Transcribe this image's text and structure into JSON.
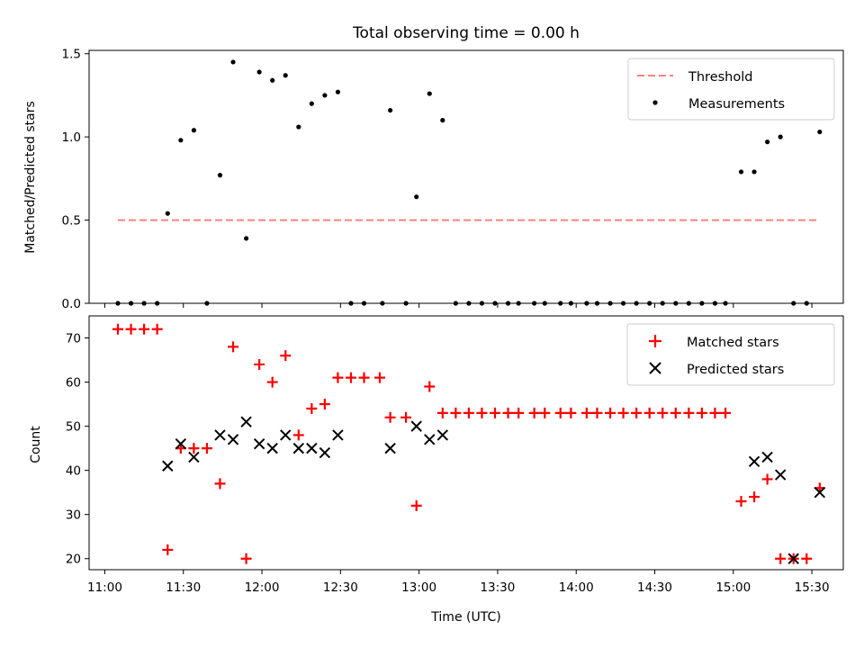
{
  "chart_data": [
    {
      "type": "scatter",
      "title": "Total observing time = 0.00 h",
      "xlabel": "",
      "ylabel": "Matched/Predicted stars",
      "ylim": [
        0,
        1.52
      ],
      "yticks": [
        "0.0",
        "0.5",
        "1.0",
        "1.5"
      ],
      "ytick_values": [
        0,
        0.5,
        1.0,
        1.5
      ],
      "xlim": [
        "10:54",
        "15:42"
      ],
      "grid": false,
      "legend_position": "top-right",
      "legend": [
        "Threshold",
        "Measurements"
      ],
      "threshold": {
        "name": "Threshold",
        "color": "#ff8080",
        "value": 0.5,
        "x_start": "11:05",
        "x_end": "15:32"
      },
      "series": [
        {
          "name": "Measurements",
          "color": "#000000",
          "marker": "dot",
          "x": [
            "11:05",
            "11:10",
            "11:15",
            "11:20",
            "11:24",
            "11:29",
            "11:34",
            "11:39",
            "11:44",
            "11:49",
            "11:54",
            "11:59",
            "12:04",
            "12:09",
            "12:14",
            "12:19",
            "12:24",
            "12:29",
            "12:34",
            "12:39",
            "12:46",
            "12:49",
            "12:55",
            "12:59",
            "13:04",
            "13:09",
            "13:14",
            "13:19",
            "13:24",
            "13:29",
            "13:34",
            "13:38",
            "13:44",
            "13:48",
            "13:54",
            "13:58",
            "14:04",
            "14:08",
            "14:13",
            "14:18",
            "14:23",
            "14:28",
            "14:33",
            "14:38",
            "14:43",
            "14:48",
            "14:53",
            "14:57",
            "15:03",
            "15:08",
            "15:13",
            "15:18",
            "15:23",
            "15:28",
            "15:33"
          ],
          "y": [
            0,
            0,
            0,
            0,
            0.54,
            0.98,
            1.04,
            0,
            0.77,
            1.45,
            0.39,
            1.39,
            1.34,
            1.37,
            1.06,
            1.2,
            1.25,
            1.27,
            0,
            0,
            0,
            1.16,
            0,
            0.64,
            1.26,
            1.1,
            0,
            0,
            0,
            0,
            0,
            0,
            0,
            0,
            0,
            0,
            0,
            0,
            0,
            0,
            0,
            0,
            0,
            0,
            0,
            0,
            0,
            0,
            0.79,
            0.79,
            0.97,
            1.0,
            0,
            0,
            1.03
          ]
        }
      ]
    },
    {
      "type": "scatter",
      "title": "",
      "xlabel": "Time (UTC)",
      "ylabel": "Count",
      "ylim": [
        17.5,
        75
      ],
      "yticks": [
        "20",
        "30",
        "40",
        "50",
        "60",
        "70"
      ],
      "ytick_values": [
        20,
        30,
        40,
        50,
        60,
        70
      ],
      "xlim": [
        "10:54",
        "15:42"
      ],
      "xticks": [
        "11:00",
        "11:30",
        "12:00",
        "12:30",
        "13:00",
        "13:30",
        "14:00",
        "14:30",
        "15:00",
        "15:30"
      ],
      "grid": false,
      "legend_position": "top-right",
      "legend": [
        "Matched stars",
        "Predicted stars"
      ],
      "series": [
        {
          "name": "Matched stars",
          "color": "#ff0000",
          "marker": "plus",
          "x": [
            "11:05",
            "11:10",
            "11:15",
            "11:20",
            "11:24",
            "11:29",
            "11:34",
            "11:39",
            "11:44",
            "11:49",
            "11:54",
            "11:59",
            "12:04",
            "12:09",
            "12:14",
            "12:19",
            "12:24",
            "12:29",
            "12:34",
            "12:39",
            "12:45",
            "12:49",
            "12:55",
            "12:59",
            "13:04",
            "13:09",
            "13:14",
            "13:19",
            "13:24",
            "13:29",
            "13:34",
            "13:38",
            "13:44",
            "13:48",
            "13:54",
            "13:58",
            "14:04",
            "14:08",
            "14:13",
            "14:18",
            "14:23",
            "14:28",
            "14:33",
            "14:38",
            "14:43",
            "14:48",
            "14:53",
            "14:57",
            "15:03",
            "15:08",
            "15:13",
            "15:18",
            "15:23",
            "15:28",
            "15:33"
          ],
          "y": [
            72,
            72,
            72,
            72,
            22,
            45,
            45,
            45,
            37,
            68,
            20,
            64,
            60,
            66,
            48,
            54,
            55,
            61,
            61,
            61,
            61,
            52,
            52,
            32,
            59,
            53,
            53,
            53,
            53,
            53,
            53,
            53,
            53,
            53,
            53,
            53,
            53,
            53,
            53,
            53,
            53,
            53,
            53,
            53,
            53,
            53,
            53,
            53,
            33,
            34,
            38,
            20,
            20,
            20,
            36
          ]
        },
        {
          "name": "Predicted stars",
          "color": "#000000",
          "marker": "x",
          "x": [
            "11:24",
            "11:29",
            "11:34",
            "11:44",
            "11:49",
            "11:54",
            "11:59",
            "12:04",
            "12:09",
            "12:14",
            "12:19",
            "12:24",
            "12:29",
            "12:49",
            "12:59",
            "13:04",
            "13:09",
            "15:08",
            "15:13",
            "15:18",
            "15:23",
            "15:33"
          ],
          "y": [
            41,
            46,
            43,
            48,
            47,
            51,
            46,
            45,
            48,
            45,
            45,
            44,
            48,
            45,
            50,
            47,
            48,
            42,
            43,
            39,
            20,
            35
          ]
        }
      ]
    }
  ]
}
